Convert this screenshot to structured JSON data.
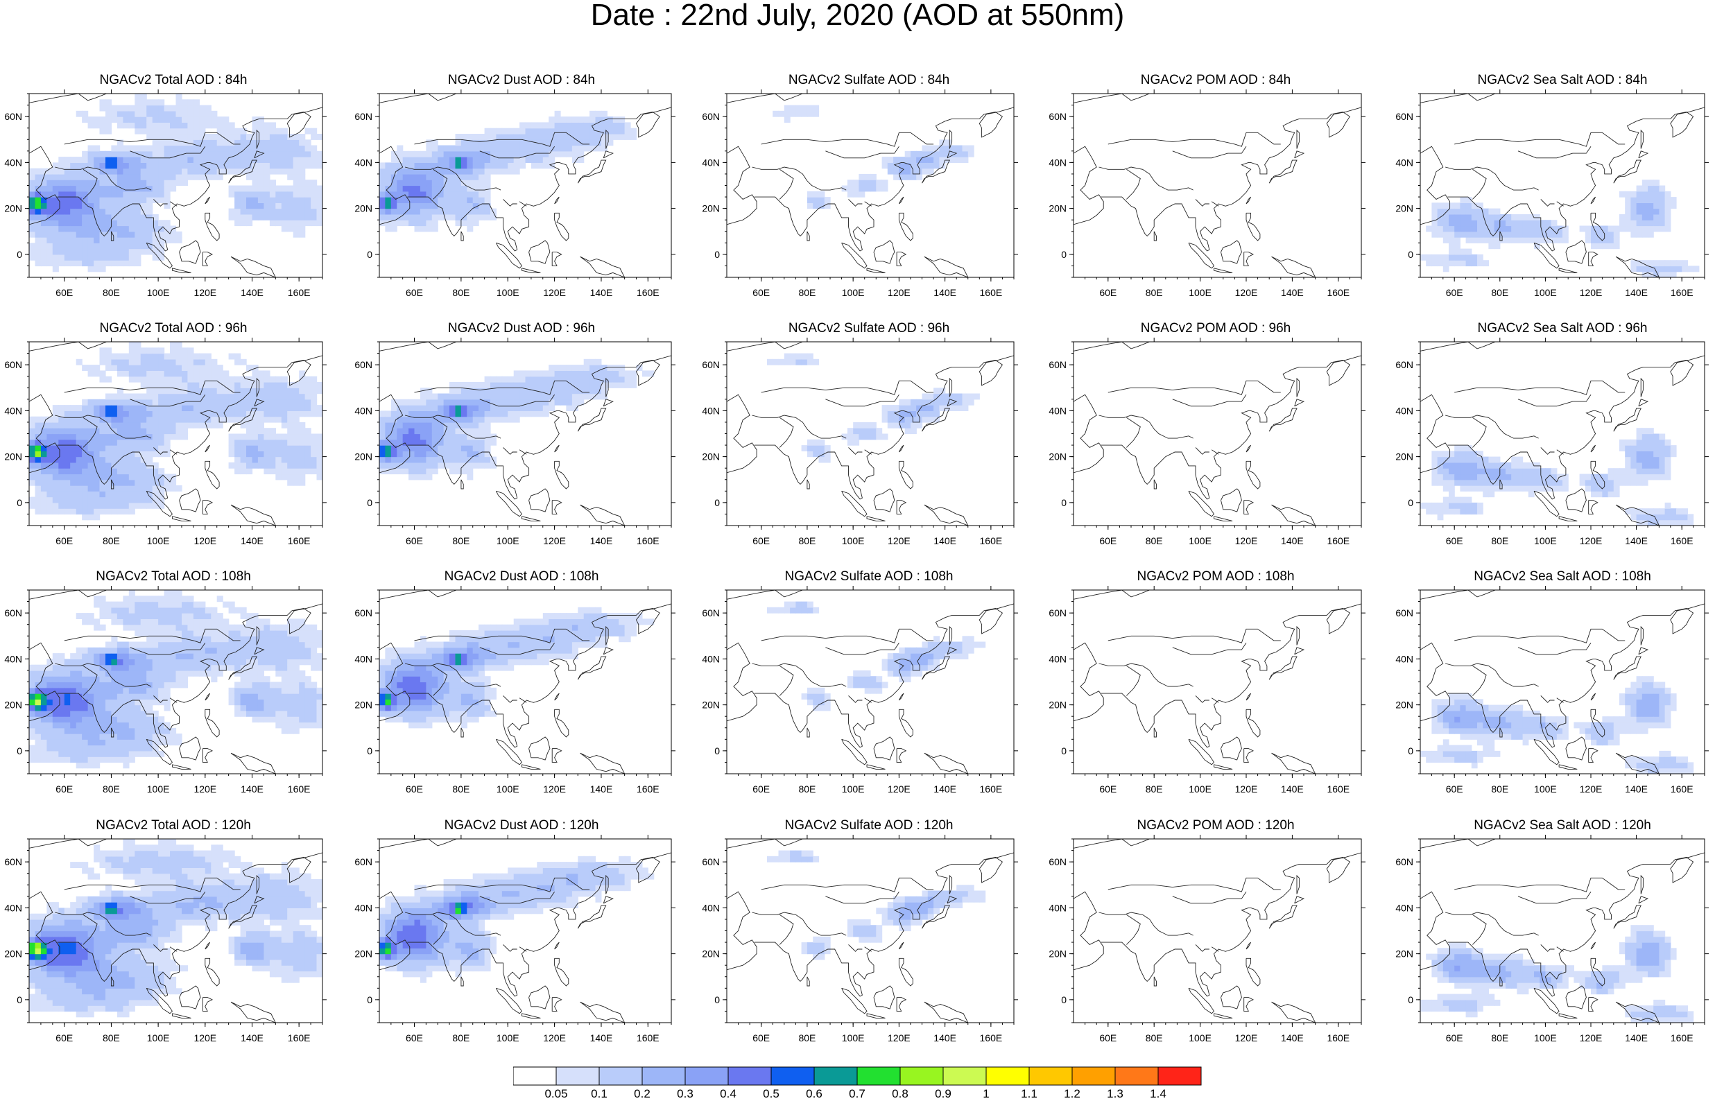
{
  "title": "Date : 22nd July, 2020 (AOD at 550nm)",
  "lon_labels": [
    "60E",
    "80E",
    "100E",
    "120E",
    "140E",
    "160E"
  ],
  "lat_labels": [
    "60N",
    "40N",
    "20N",
    "0"
  ],
  "panels": [
    [
      {
        "title": "NGACv2 Total AOD : 84h",
        "species": "total",
        "hour": 84
      },
      {
        "title": "NGACv2 Dust AOD : 84h",
        "species": "dust",
        "hour": 84
      },
      {
        "title": "NGACv2 Sulfate AOD : 84h",
        "species": "sulfate",
        "hour": 84
      },
      {
        "title": "NGACv2 POM AOD : 84h",
        "species": "pom",
        "hour": 84
      },
      {
        "title": "NGACv2 Sea Salt AOD : 84h",
        "species": "seasalt",
        "hour": 84
      }
    ],
    [
      {
        "title": "NGACv2 Total AOD : 96h",
        "species": "total",
        "hour": 96
      },
      {
        "title": "NGACv2 Dust AOD : 96h",
        "species": "dust",
        "hour": 96
      },
      {
        "title": "NGACv2 Sulfate AOD : 96h",
        "species": "sulfate",
        "hour": 96
      },
      {
        "title": "NGACv2 POM AOD : 96h",
        "species": "pom",
        "hour": 96
      },
      {
        "title": "NGACv2 Sea Salt AOD : 96h",
        "species": "seasalt",
        "hour": 96
      }
    ],
    [
      {
        "title": "NGACv2 Total AOD : 108h",
        "species": "total",
        "hour": 108
      },
      {
        "title": "NGACv2 Dust AOD : 108h",
        "species": "dust",
        "hour": 108
      },
      {
        "title": "NGACv2 Sulfate AOD : 108h",
        "species": "sulfate",
        "hour": 108
      },
      {
        "title": "NGACv2 POM AOD : 108h",
        "species": "pom",
        "hour": 108
      },
      {
        "title": "NGACv2 Sea Salt AOD : 108h",
        "species": "seasalt",
        "hour": 108
      }
    ],
    [
      {
        "title": "NGACv2 Total AOD : 120h",
        "species": "total",
        "hour": 120
      },
      {
        "title": "NGACv2 Dust AOD : 120h",
        "species": "dust",
        "hour": 120
      },
      {
        "title": "NGACv2 Sulfate AOD : 120h",
        "species": "sulfate",
        "hour": 120
      },
      {
        "title": "NGACv2 POM AOD : 120h",
        "species": "pom",
        "hour": 120
      },
      {
        "title": "NGACv2 Sea Salt  AOD : 120h",
        "species": "seasalt",
        "hour": 120
      }
    ]
  ],
  "colorbar": {
    "labels": [
      "0.05",
      "0.1",
      "0.2",
      "0.3",
      "0.4",
      "0.5",
      "0.6",
      "0.7",
      "0.8",
      "0.9",
      "1",
      "1.1",
      "1.2",
      "1.3",
      "1.4"
    ],
    "colors": [
      "#ffffff",
      "#d6e0fb",
      "#b9ccfa",
      "#9db6f8",
      "#8aa2f6",
      "#6a78f0",
      "#0f5ff0",
      "#0a9a96",
      "#22e030",
      "#98f520",
      "#ccfa52",
      "#ffff00",
      "#ffc800",
      "#ffa000",
      "#ff7818",
      "#ff2418"
    ]
  }
}
